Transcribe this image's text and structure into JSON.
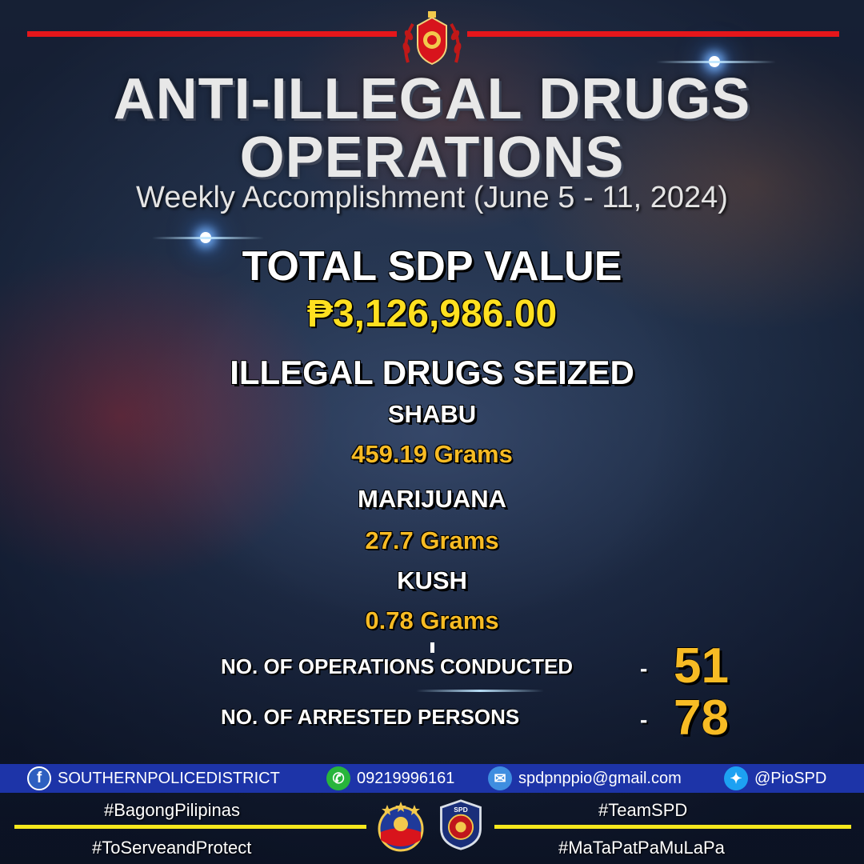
{
  "header": {
    "title_line1": "ANTI-ILLEGAL DRUGS",
    "title_line2": "OPERATIONS",
    "subtitle": "Weekly Accomplishment (June 5 - 11, 2024)"
  },
  "sdp": {
    "label": "TOTAL SDP VALUE",
    "value": "₱3,126,986.00"
  },
  "seized": {
    "label": "ILLEGAL DRUGS SEIZED",
    "items": [
      {
        "name": "SHABU",
        "amount": "459.19 Grams"
      },
      {
        "name": "MARIJUANA",
        "amount": "27.7 Grams"
      },
      {
        "name": "KUSH",
        "amount": "0.78 Grams"
      }
    ]
  },
  "stats": [
    {
      "label": "NO. OF OPERATIONS CONDUCTED",
      "dash": "-",
      "value": "51"
    },
    {
      "label": "NO. OF ARRESTED PERSONS",
      "dash": "-",
      "value": "78"
    }
  ],
  "contacts": {
    "facebook": "SOUTHERNPOLICEDISTRICT",
    "viber": "09219996161",
    "email": "spdpnppio@gmail.com",
    "twitter": "@PioSPD"
  },
  "hashtags": {
    "left_top": "#BagongPilipinas",
    "left_bottom": "#ToServeandProtect",
    "right_top": "#TeamSPD",
    "right_bottom": "#MaTaPatPaMuLaPa"
  },
  "badges": {
    "spd_text": "SPD"
  },
  "colors": {
    "accent_red": "#e5161b",
    "value_yellow": "#f7bb24",
    "contact_bar": "#1d34a8",
    "hashtag_line": "#f6e81d"
  }
}
